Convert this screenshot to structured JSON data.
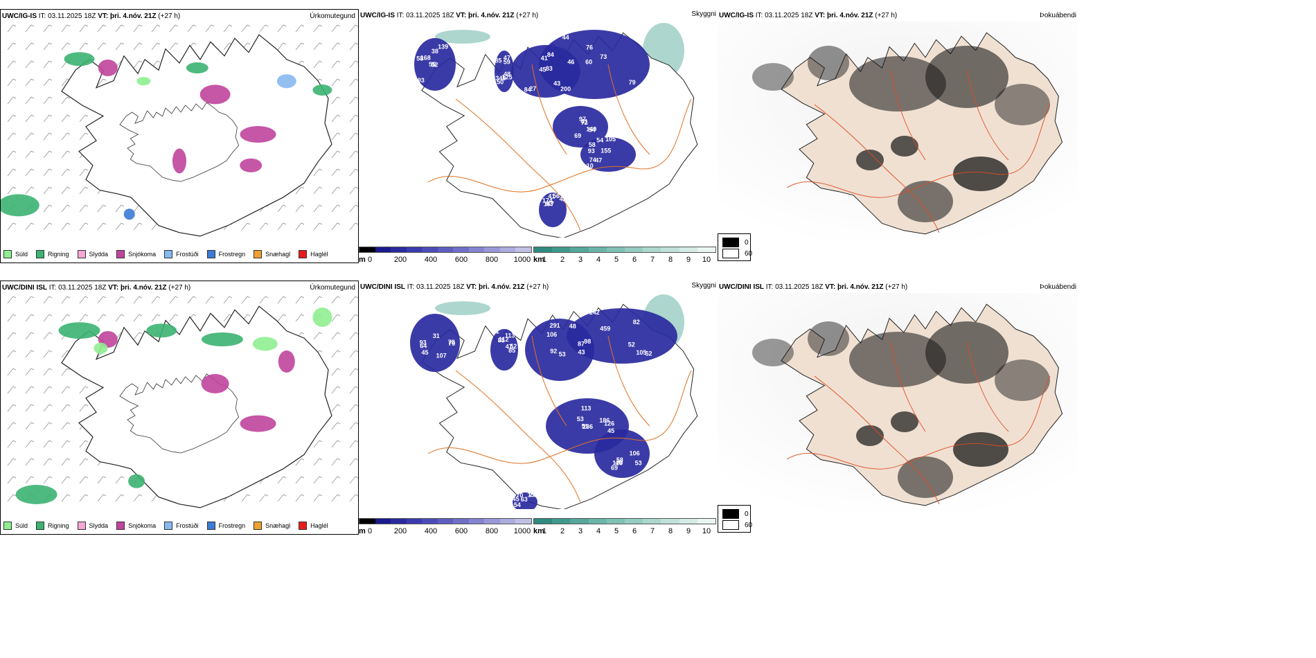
{
  "rows": [
    {
      "model": "UWC/IG-IS",
      "precip_panel": {
        "it_label": "IT:",
        "it_value": "03.11.2025 18Z",
        "vt_label": "VT:",
        "vt_value": "þri. 4.nóv. 21Z",
        "lead": "(+27 h)",
        "type_label": "Úrkomutegund"
      },
      "cloud_panel": {
        "it_label": "IT:",
        "it_value": "03.11.2025 18Z",
        "vt_label": "VT:",
        "vt_value": "þri. 4.nóv. 21Z",
        "lead": "(+27 h)",
        "type_label": "Skyggni",
        "ceiling_labels": [
          "52",
          "85",
          "45",
          "43",
          "41",
          "47",
          "56",
          "38",
          "47",
          "83",
          "44",
          "54",
          "93",
          "42",
          "55",
          "59",
          "84",
          "76",
          "97",
          "74",
          "03",
          "93",
          "50",
          "41",
          "73",
          "54",
          "58",
          "41",
          "58",
          "48",
          "46",
          "60",
          "69",
          "155",
          "174",
          "139",
          "349",
          "200",
          "79",
          "149",
          "105",
          "167",
          "168",
          "125",
          "27",
          "84",
          "72",
          "10"
        ]
      },
      "fog_panel": {
        "it_label": "IT:",
        "it_value": "03.11.2025 18Z",
        "vt_label": "VT:",
        "vt_value": "þri. 4.nóv. 21Z",
        "lead": "(+27 h)",
        "type_label": "Þokuábendi"
      }
    },
    {
      "model": "UWC/DINI ISL",
      "precip_panel": {
        "it_label": "IT:",
        "it_value": "03.11.2025 18Z",
        "vt_label": "VT:",
        "vt_value": "þri. 4.nóv. 21Z",
        "lead": "(+27 h)",
        "type_label": "Úrkomutegund"
      },
      "cloud_panel": {
        "it_label": "IT:",
        "it_value": "03.11.2025 18Z",
        "vt_label": "VT:",
        "vt_value": "þri. 4.nóv. 21Z",
        "lead": "(+27 h)",
        "type_label": "Skyggni",
        "ceiling_labels": [
          "31",
          "52",
          "92",
          "52",
          "53",
          "53",
          "70",
          "93",
          "61",
          "48",
          "82",
          "51",
          "58",
          "54",
          "45",
          "47",
          "43",
          "52",
          "45",
          "69",
          "63",
          "64",
          "113",
          "53",
          "98",
          "286",
          "120",
          "151",
          "78",
          "85",
          "87",
          "459",
          "186",
          "40",
          "45",
          "79",
          "85",
          "291",
          "142",
          "113",
          "106",
          "23",
          "107",
          "112",
          "106",
          "105",
          "126"
        ]
      },
      "fog_panel": {
        "it_label": "IT:",
        "it_value": "03.11.2025 18Z",
        "vt_label": "VT:",
        "vt_value": "þri. 4.nóv. 21Z",
        "lead": "(+27 h)",
        "type_label": "Þokuábendi"
      }
    }
  ],
  "precip_legend": [
    {
      "label": "Súld",
      "color": "#90ee90"
    },
    {
      "label": "Rigning",
      "color": "#3cb371"
    },
    {
      "label": "Slydda",
      "color": "#f4a6d7"
    },
    {
      "label": "Snjókoma",
      "color": "#c0449c"
    },
    {
      "label": "Frostúði",
      "color": "#87b9f0"
    },
    {
      "label": "Frostregn",
      "color": "#3a7bd5"
    },
    {
      "label": "Snæhagl",
      "color": "#f0a030"
    },
    {
      "label": "Haglél",
      "color": "#e81c1c"
    }
  ],
  "ceiling_colorbar": {
    "unit": "m",
    "ticks": [
      "0",
      "200",
      "400",
      "600",
      "800",
      "1000"
    ],
    "colors": [
      "#000000",
      "#1a1a8c",
      "#2a2aa0",
      "#3b3bb0",
      "#4c4cb8",
      "#5e5ec0",
      "#7070c8",
      "#8484d0",
      "#9898d8",
      "#acacdf",
      "#c0c0e6"
    ]
  },
  "visibility_colorbar": {
    "unit": "km",
    "ticks": [
      "1",
      "2",
      "3",
      "4",
      "5",
      "6",
      "7",
      "8",
      "9",
      "10"
    ],
    "colors": [
      "#2e8b7f",
      "#3f9a8d",
      "#55a89b",
      "#6ab5a8",
      "#80c1b5",
      "#96ccc1",
      "#abd7cd",
      "#c0e1d9",
      "#d5ebe5",
      "#eaf5f2"
    ]
  },
  "fog_legend": [
    {
      "label": "0",
      "color": "#000000"
    },
    {
      "label": "60",
      "color": "#ffffff"
    }
  ]
}
